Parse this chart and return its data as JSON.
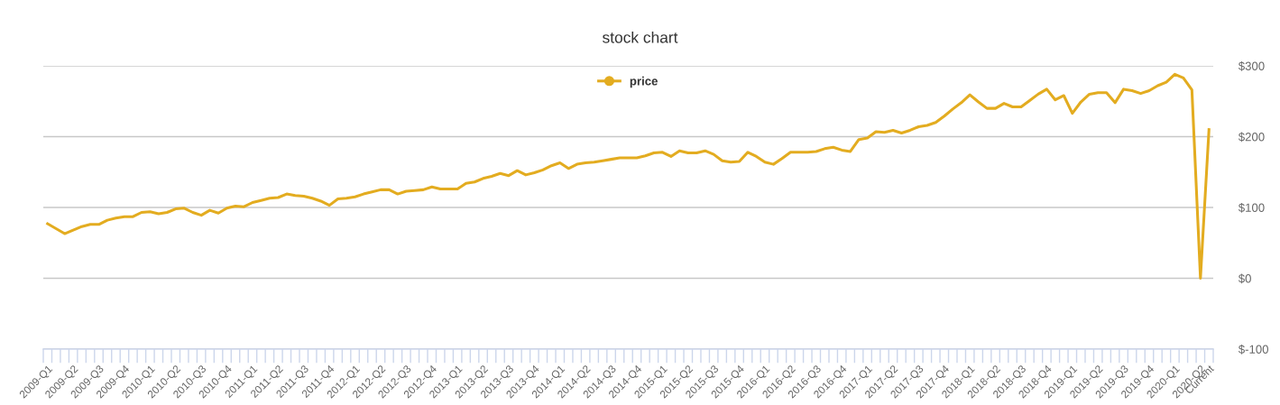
{
  "chart_data": {
    "type": "line",
    "title": "stock chart",
    "categories": [
      "2009-Q1",
      null,
      null,
      "2009-Q2",
      null,
      null,
      "2009-Q3",
      null,
      null,
      "2009-Q4",
      null,
      null,
      "2010-Q1",
      null,
      null,
      "2010-Q2",
      null,
      null,
      "2010-Q3",
      null,
      null,
      "2010-Q4",
      null,
      null,
      "2011-Q1",
      null,
      null,
      "2011-Q2",
      null,
      null,
      "2011-Q3",
      null,
      null,
      "2011-Q4",
      null,
      null,
      "2012-Q1",
      null,
      null,
      "2012-Q2",
      null,
      null,
      "2012-Q3",
      null,
      null,
      "2012-Q4",
      null,
      null,
      "2013-Q1",
      null,
      null,
      "2013-Q2",
      null,
      null,
      "2013-Q3",
      null,
      null,
      "2013-Q4",
      null,
      null,
      "2014-Q1",
      null,
      null,
      "2014-Q2",
      null,
      null,
      "2014-Q3",
      null,
      null,
      "2014-Q4",
      null,
      null,
      "2015-Q1",
      null,
      null,
      "2015-Q2",
      null,
      null,
      "2015-Q3",
      null,
      null,
      "2015-Q4",
      null,
      null,
      "2016-Q1",
      null,
      null,
      "2016-Q2",
      null,
      null,
      "2016-Q3",
      null,
      null,
      "2016-Q4",
      null,
      null,
      "2017-Q1",
      null,
      null,
      "2017-Q2",
      null,
      null,
      "2017-Q3",
      null,
      null,
      "2017-Q4",
      null,
      null,
      "2018-Q1",
      null,
      null,
      "2018-Q2",
      null,
      null,
      "2018-Q3",
      null,
      null,
      "2018-Q4",
      null,
      null,
      "2019-Q1",
      null,
      null,
      "2019-Q2",
      null,
      null,
      "2019-Q3",
      null,
      null,
      "2019-Q4",
      null,
      null,
      "2020-Q1",
      null,
      null,
      "2020-Q2",
      "Current"
    ],
    "series": [
      {
        "name": "price",
        "color": "#e3ac20",
        "values": [
          77,
          70,
          63,
          68,
          73,
          76,
          76,
          82,
          85,
          87,
          87,
          93,
          94,
          91,
          93,
          98,
          99,
          93,
          89,
          96,
          92,
          99,
          102,
          101,
          107,
          110,
          113,
          114,
          119,
          117,
          116,
          113,
          109,
          103,
          112,
          113,
          115,
          119,
          122,
          125,
          125,
          119,
          123,
          124,
          125,
          129,
          126,
          126,
          126,
          134,
          136,
          141,
          144,
          148,
          145,
          152,
          146,
          149,
          153,
          159,
          163,
          155,
          161,
          163,
          164,
          166,
          168,
          170,
          170,
          170,
          173,
          177,
          178,
          172,
          180,
          177,
          177,
          180,
          175,
          166,
          164,
          165,
          178,
          172,
          164,
          161,
          169,
          178,
          178,
          178,
          179,
          183,
          185,
          181,
          179,
          196,
          198,
          207,
          206,
          209,
          205,
          209,
          214,
          216,
          220,
          229,
          239,
          248,
          259,
          249,
          240,
          240,
          247,
          242,
          242,
          251,
          260,
          267,
          252,
          258,
          233,
          249,
          260,
          262,
          262,
          248,
          267,
          265,
          261,
          265,
          272,
          277,
          288,
          283,
          266,
          0,
          210
        ]
      }
    ],
    "ylim": [
      -100,
      300
    ],
    "yticks": [
      {
        "value": -100,
        "label": "$-100"
      },
      {
        "value": 0,
        "label": "$0"
      },
      {
        "value": 100,
        "label": "$100"
      },
      {
        "value": 200,
        "label": "$200"
      },
      {
        "value": 300,
        "label": "$300"
      }
    ],
    "grid": "y",
    "legend": "top"
  }
}
